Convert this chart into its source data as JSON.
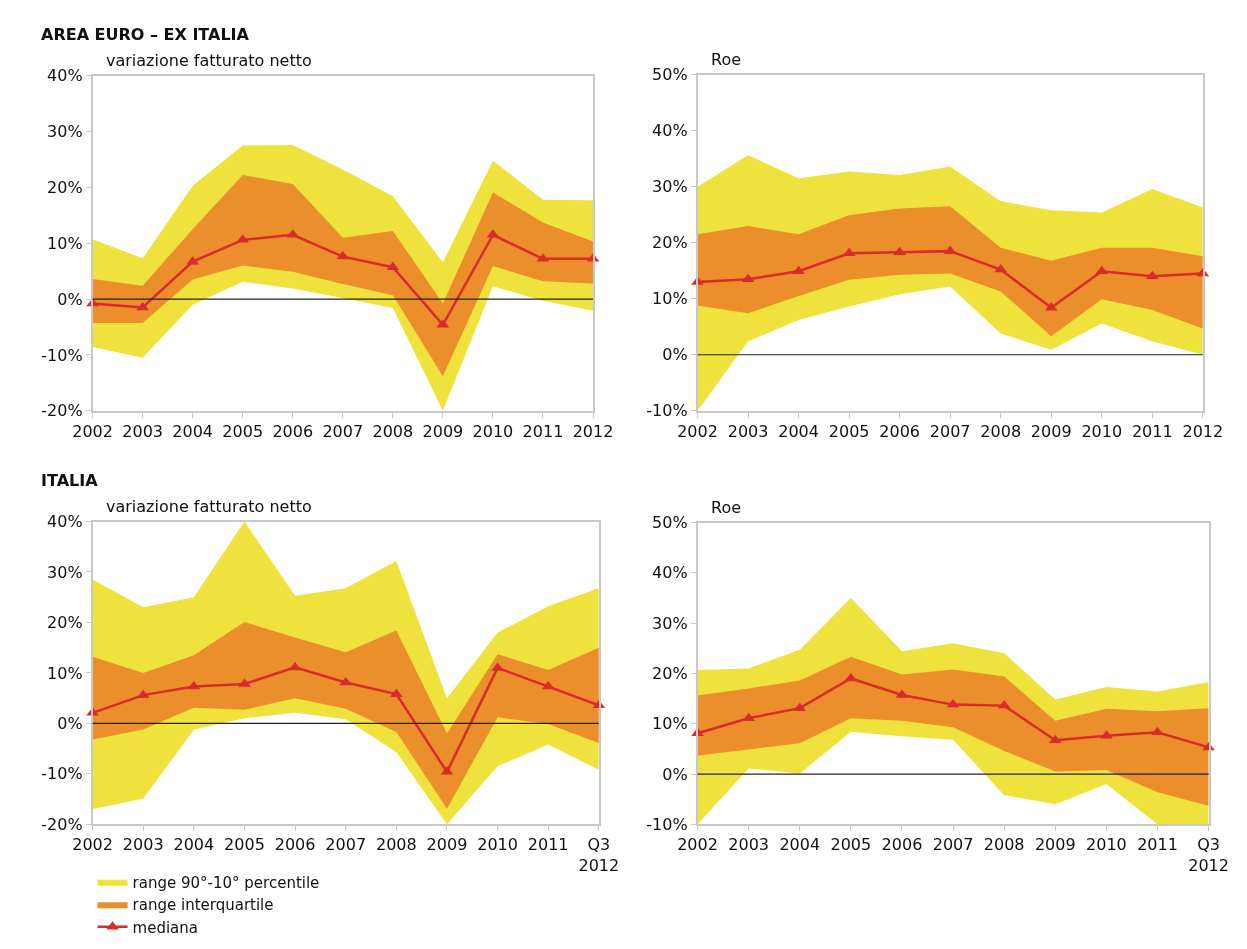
{
  "chart_data": [
    {
      "type": "line",
      "title": "AREA EURO – EX ITALIA",
      "ylabel": "variazione fatturato netto",
      "categories": [
        "2002",
        "2003",
        "2004",
        "2005",
        "2006",
        "2007",
        "2008",
        "2009",
        "2010",
        "2011",
        "2012"
      ],
      "ylim": [
        -20,
        40
      ],
      "yticks": [
        {
          "value": -20,
          "label": "-20%"
        },
        {
          "value": -10,
          "label": "-10%"
        },
        {
          "value": 0,
          "label": "0%"
        },
        {
          "value": 10,
          "label": "10%"
        },
        {
          "value": 20,
          "label": "20%"
        },
        {
          "value": 30,
          "label": "30%"
        },
        {
          "value": 40,
          "label": "40%"
        }
      ],
      "ref_lines": [
        {
          "axis": "y",
          "value": 0,
          "color": "#222222"
        }
      ],
      "series": [
        {
          "type": "area",
          "color": "#f0e23c",
          "values": [
            null,
            null,
            null,
            null,
            null,
            null,
            null,
            null,
            null,
            null,
            null
          ],
          "lower": [
            -8.6,
            -10.5,
            -1.0,
            3.1,
            1.9,
            0.2,
            -1.6,
            -20,
            2.3,
            -0.3,
            -2.1
          ],
          "upper": [
            10.7,
            7.3,
            20.3,
            27.5,
            27.6,
            23.2,
            18.4,
            6.6,
            24.8,
            17.8,
            17.7
          ]
        },
        {
          "type": "area",
          "color": "#ea8f2b",
          "values": [
            null,
            null,
            null,
            null,
            null,
            null,
            null,
            null,
            null,
            null,
            null
          ],
          "lower": [
            -4.3,
            -4.3,
            3.5,
            6.0,
            4.9,
            2.7,
            0.7,
            -13.8,
            5.9,
            3.2,
            2.8
          ],
          "upper": [
            3.6,
            2.4,
            12.5,
            22.2,
            20.6,
            11.0,
            12.2,
            -0.8,
            19.1,
            13.7,
            10.3
          ]
        },
        {
          "marker": "triangle",
          "color": "#d92b2b",
          "values": [
            -0.8,
            -1.5,
            6.7,
            10.6,
            11.5,
            7.6,
            5.7,
            -4.6,
            11.5,
            7.2,
            7.2
          ]
        }
      ]
    },
    {
      "type": "line",
      "ylabel": "Roe",
      "categories": [
        "2002",
        "2003",
        "2004",
        "2005",
        "2006",
        "2007",
        "2008",
        "2009",
        "2010",
        "2011",
        "2012"
      ],
      "ylim": [
        -10,
        50
      ],
      "yticks": [
        {
          "value": -10,
          "label": "-10%"
        },
        {
          "value": 0,
          "label": "0%"
        },
        {
          "value": 10,
          "label": "10%"
        },
        {
          "value": 20,
          "label": "20%"
        },
        {
          "value": 30,
          "label": "30%"
        },
        {
          "value": 40,
          "label": "40%"
        },
        {
          "value": 50,
          "label": "50%"
        }
      ],
      "ref_lines": [
        {
          "axis": "y",
          "value": 0,
          "color": "#222222"
        }
      ],
      "series": [
        {
          "type": "area",
          "color": "#f0e23c",
          "values": [
            null,
            null,
            null,
            null,
            null,
            null,
            null,
            null,
            null,
            null,
            null
          ],
          "lower": [
            -10,
            2.4,
            6.2,
            8.6,
            10.8,
            12.2,
            3.8,
            0.9,
            5.6,
            2.4,
            0.0
          ],
          "upper": [
            30.0,
            35.6,
            31.5,
            32.7,
            32.1,
            33.6,
            27.4,
            25.8,
            25.4,
            29.6,
            26.3
          ]
        },
        {
          "type": "area",
          "color": "#ea8f2b",
          "values": [
            null,
            null,
            null,
            null,
            null,
            null,
            null,
            null,
            null,
            null,
            null
          ],
          "lower": [
            8.8,
            7.4,
            10.5,
            13.4,
            14.3,
            14.5,
            11.3,
            3.3,
            9.9,
            8.0,
            4.7
          ],
          "upper": [
            21.5,
            23.0,
            21.5,
            24.9,
            26.1,
            26.5,
            19.1,
            16.8,
            19.1,
            19.1,
            17.6
          ]
        },
        {
          "marker": "triangle",
          "color": "#d92b2b",
          "values": [
            13.0,
            13.5,
            14.9,
            18.1,
            18.3,
            18.5,
            15.2,
            8.4,
            14.9,
            14.0,
            14.5
          ]
        }
      ]
    },
    {
      "type": "line",
      "title": "ITALIA",
      "ylabel": "variazione fatturato netto",
      "categories": [
        "2002",
        "2003",
        "2004",
        "2005",
        "2006",
        "2007",
        "2008",
        "2009",
        "2010",
        "2011",
        "Q3\n2012"
      ],
      "ylim": [
        -20,
        40
      ],
      "yticks": [
        {
          "value": -20,
          "label": "-20%"
        },
        {
          "value": -10,
          "label": "-10%"
        },
        {
          "value": 0,
          "label": "0%"
        },
        {
          "value": 10,
          "label": "10%"
        },
        {
          "value": 20,
          "label": "20%"
        },
        {
          "value": 30,
          "label": "30%"
        },
        {
          "value": 40,
          "label": "40%"
        }
      ],
      "legend": "bottom",
      "ref_lines": [
        {
          "axis": "y",
          "value": 0,
          "color": "#222222"
        }
      ],
      "series": [
        {
          "type": "area",
          "name": "range 90°-10° percentile",
          "color": "#f0e23c",
          "values": [
            null,
            null,
            null,
            null,
            null,
            null,
            null,
            null,
            null,
            null,
            null
          ],
          "lower": [
            -17.0,
            -14.9,
            -1.2,
            1.0,
            2.1,
            0.8,
            -5.7,
            -20,
            -8.5,
            -4.2,
            -9.2
          ],
          "upper": [
            28.5,
            23.0,
            25.0,
            40,
            25.3,
            26.8,
            32.2,
            5.0,
            18.0,
            23.2,
            26.8
          ]
        },
        {
          "type": "area",
          "name": "range interquartile",
          "color": "#ea8f2b",
          "values": [
            null,
            null,
            null,
            null,
            null,
            null,
            null,
            null,
            null,
            null,
            null
          ],
          "lower": [
            -3.2,
            -1.2,
            3.1,
            2.7,
            5.0,
            2.9,
            -1.7,
            -16.9,
            1.2,
            -0.1,
            -3.9
          ],
          "upper": [
            13.2,
            10.0,
            13.5,
            20.1,
            17.0,
            14.1,
            18.4,
            -2.0,
            13.7,
            10.6,
            15.0
          ]
        },
        {
          "marker": "triangle",
          "name": "mediana",
          "color": "#d92b2b",
          "values": [
            2.1,
            5.6,
            7.3,
            7.8,
            11.1,
            8.1,
            5.8,
            -9.6,
            11.0,
            7.3,
            3.6
          ]
        }
      ]
    },
    {
      "type": "line",
      "ylabel": "Roe",
      "categories": [
        "2002",
        "2003",
        "2004",
        "2005",
        "2006",
        "2007",
        "2008",
        "2009",
        "2010",
        "2011",
        "Q3\n2012"
      ],
      "ylim": [
        -10,
        50
      ],
      "yticks": [
        {
          "value": -10,
          "label": "-10%"
        },
        {
          "value": 0,
          "label": "0%"
        },
        {
          "value": 10,
          "label": "10%"
        },
        {
          "value": 20,
          "label": "20%"
        },
        {
          "value": 30,
          "label": "30%"
        },
        {
          "value": 40,
          "label": "40%"
        },
        {
          "value": 50,
          "label": "50%"
        }
      ],
      "ref_lines": [
        {
          "axis": "y",
          "value": 0,
          "color": "#222222"
        }
      ],
      "series": [
        {
          "type": "area",
          "color": "#f0e23c",
          "values": [
            null,
            null,
            null,
            null,
            null,
            null,
            null,
            null,
            null,
            null,
            null
          ],
          "lower": [
            -10,
            1.1,
            0.1,
            8.4,
            7.5,
            6.8,
            -4.2,
            -6.0,
            -2.0,
            -10,
            -10
          ],
          "upper": [
            20.7,
            21.0,
            24.7,
            35.0,
            24.4,
            26.0,
            24.0,
            14.8,
            17.3,
            16.4,
            18.3
          ]
        },
        {
          "type": "area",
          "color": "#ea8f2b",
          "values": [
            null,
            null,
            null,
            null,
            null,
            null,
            null,
            null,
            null,
            null,
            null
          ],
          "lower": [
            3.7,
            4.9,
            6.1,
            11.1,
            10.6,
            9.3,
            4.6,
            0.5,
            0.8,
            -3.6,
            -6.3
          ],
          "upper": [
            15.6,
            17.0,
            18.6,
            23.3,
            19.8,
            20.8,
            19.4,
            10.6,
            13.0,
            12.5,
            13.1
          ]
        },
        {
          "marker": "triangle",
          "color": "#d92b2b",
          "values": [
            8.1,
            11.1,
            13.1,
            19.0,
            15.7,
            13.8,
            13.6,
            6.7,
            7.6,
            8.3,
            5.3
          ]
        }
      ]
    }
  ]
}
